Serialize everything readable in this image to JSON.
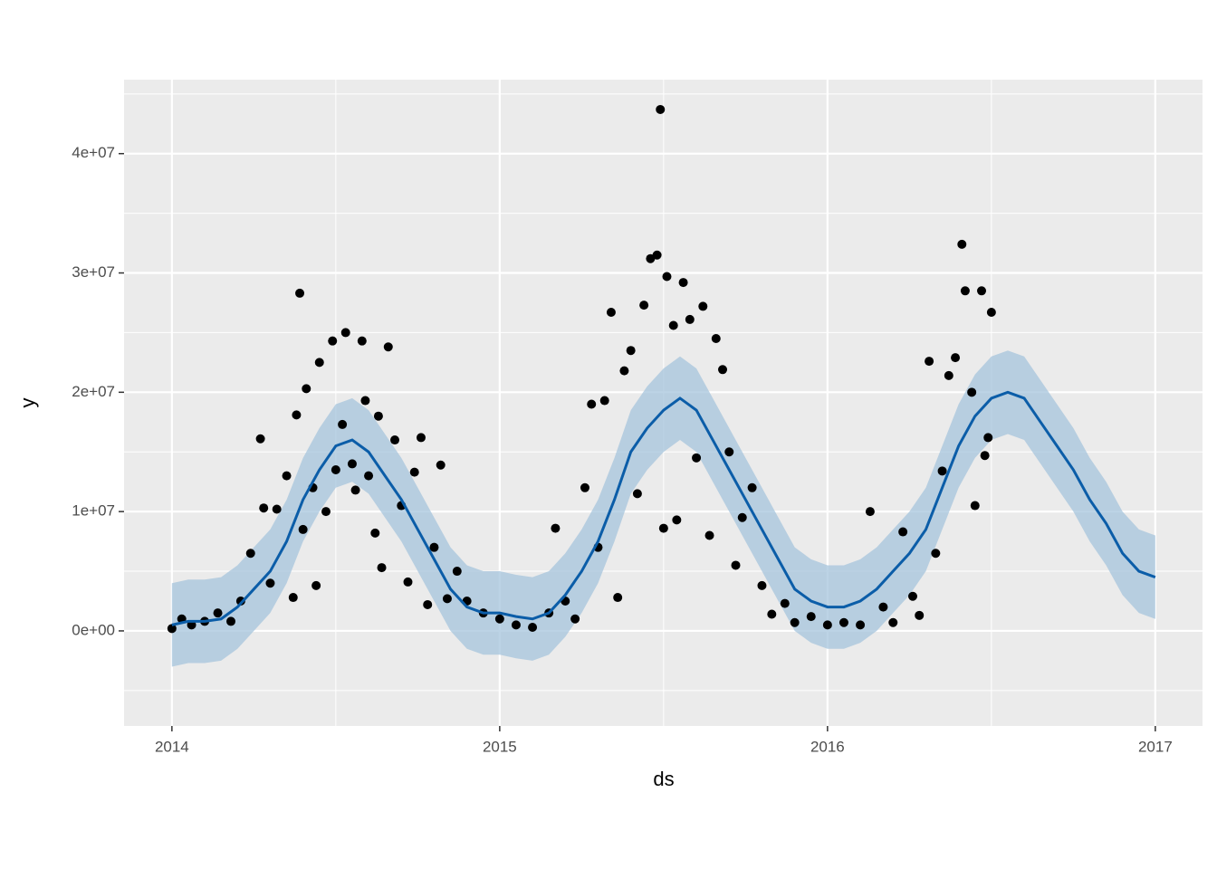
{
  "chart_data": {
    "type": "forecast",
    "xlabel": "ds",
    "ylabel": "y",
    "xlim": [
      2013.854,
      2017.144
    ],
    "xticks": [
      2014,
      2015,
      2016,
      2017
    ],
    "xminor_ticks": [
      2014.5,
      2015.5,
      2016.5
    ],
    "ylim": [
      -7970000,
      46200000
    ],
    "yticks": [
      {
        "value": 0,
        "label": "0e+00"
      },
      {
        "value": 10000000,
        "label": "1e+07"
      },
      {
        "value": 20000000,
        "label": "2e+07"
      },
      {
        "value": 30000000,
        "label": "3e+07"
      },
      {
        "value": 40000000,
        "label": "4e+07"
      }
    ],
    "yminor_ticks": [
      -5000000,
      5000000,
      15000000,
      25000000,
      35000000,
      45000000
    ],
    "grid": true,
    "color": "#0b5da8",
    "band_color": "#a6c4dc",
    "point_color": "#000000",
    "x": [
      2014,
      2014.05,
      2014.1,
      2014.15,
      2014.2,
      2014.25,
      2014.3,
      2014.35,
      2014.4,
      2014.45,
      2014.5,
      2014.55,
      2014.6,
      2014.65,
      2014.7,
      2014.75,
      2014.8,
      2014.85,
      2014.9,
      2014.95,
      2015,
      2015.05,
      2015.1,
      2015.15,
      2015.2,
      2015.25,
      2015.3,
      2015.35,
      2015.4,
      2015.45,
      2015.5,
      2015.55,
      2015.6,
      2015.65,
      2015.7,
      2015.75,
      2015.8,
      2015.85,
      2015.9,
      2015.95,
      2016,
      2016.05,
      2016.1,
      2016.15,
      2016.2,
      2016.25,
      2016.3,
      2016.35,
      2016.4,
      2016.45,
      2016.5,
      2016.55,
      2016.6,
      2016.65,
      2016.7,
      2016.75,
      2016.8,
      2016.85,
      2016.9,
      2016.95,
      2017
    ],
    "values": [
      500000,
      800000,
      800000,
      1000000,
      2000000,
      3500000,
      5000000,
      7500000,
      11000000,
      13500000,
      15500000,
      16000000,
      15000000,
      13000000,
      11000000,
      8500000,
      6000000,
      3500000,
      2000000,
      1500000,
      1500000,
      1200000,
      1000000,
      1500000,
      3000000,
      5000000,
      7500000,
      11000000,
      15000000,
      17000000,
      18500000,
      19500000,
      18500000,
      16000000,
      13500000,
      11000000,
      8500000,
      6000000,
      3500000,
      2500000,
      2000000,
      2000000,
      2500000,
      3500000,
      5000000,
      6500000,
      8500000,
      12000000,
      15500000,
      18000000,
      19500000,
      20000000,
      19500000,
      17500000,
      15500000,
      13500000,
      11000000,
      9000000,
      6500000,
      5000000,
      4500000
    ],
    "lower": [
      -3000000,
      -2700000,
      -2700000,
      -2500000,
      -1500000,
      0,
      1500000,
      4000000,
      7500000,
      10000000,
      12000000,
      12500000,
      11500000,
      9500000,
      7500000,
      5000000,
      2500000,
      0,
      -1500000,
      -2000000,
      -2000000,
      -2300000,
      -2500000,
      -2000000,
      -500000,
      1500000,
      4000000,
      7500000,
      11500000,
      13500000,
      15000000,
      16000000,
      15000000,
      12500000,
      10000000,
      7500000,
      5000000,
      2500000,
      0,
      -1000000,
      -1500000,
      -1500000,
      -1000000,
      0,
      1500000,
      3000000,
      5000000,
      8500000,
      12000000,
      14500000,
      16000000,
      16500000,
      16000000,
      14000000,
      12000000,
      10000000,
      7500000,
      5500000,
      3000000,
      1500000,
      1000000
    ],
    "upper": [
      4000000,
      4300000,
      4300000,
      4500000,
      5500000,
      7000000,
      8500000,
      11000000,
      14500000,
      17000000,
      19000000,
      19500000,
      18500000,
      16500000,
      14500000,
      12000000,
      9500000,
      7000000,
      5500000,
      5000000,
      5000000,
      4700000,
      4500000,
      5000000,
      6500000,
      8500000,
      11000000,
      14500000,
      18500000,
      20500000,
      22000000,
      23000000,
      22000000,
      19500000,
      17000000,
      14500000,
      12000000,
      9500000,
      7000000,
      6000000,
      5500000,
      5500000,
      6000000,
      7000000,
      8500000,
      10000000,
      12000000,
      15500000,
      19000000,
      21500000,
      23000000,
      23500000,
      23000000,
      21000000,
      19000000,
      17000000,
      14500000,
      12500000,
      10000000,
      8500000,
      8000000
    ],
    "points": {
      "x": [
        2014,
        2014.03,
        2014.06,
        2014.1,
        2014.14,
        2014.18,
        2014.21,
        2014.24,
        2014.27,
        2014.28,
        2014.3,
        2014.32,
        2014.35,
        2014.37,
        2014.38,
        2014.4,
        2014.39,
        2014.41,
        2014.43,
        2014.44,
        2014.45,
        2014.47,
        2014.49,
        2014.5,
        2014.52,
        2014.53,
        2014.55,
        2014.56,
        2014.58,
        2014.59,
        2014.6,
        2014.62,
        2014.63,
        2014.64,
        2014.66,
        2014.68,
        2014.7,
        2014.72,
        2014.74,
        2014.76,
        2014.78,
        2014.8,
        2014.82,
        2014.84,
        2014.87,
        2014.9,
        2014.95,
        2015,
        2015.05,
        2015.1,
        2015.15,
        2015.17,
        2015.2,
        2015.23,
        2015.26,
        2015.28,
        2015.3,
        2015.32,
        2015.34,
        2015.36,
        2015.38,
        2015.4,
        2015.42,
        2015.44,
        2015.46,
        2015.48,
        2015.49,
        2015.5,
        2015.51,
        2015.53,
        2015.54,
        2015.56,
        2015.58,
        2015.6,
        2015.62,
        2015.64,
        2015.66,
        2015.68,
        2015.7,
        2015.72,
        2015.74,
        2015.77,
        2015.8,
        2015.83,
        2015.87,
        2015.9,
        2015.95,
        2016,
        2016.05,
        2016.1,
        2016.13,
        2016.17,
        2016.2,
        2016.23,
        2016.26,
        2016.28,
        2016.31,
        2016.33,
        2016.35,
        2016.37,
        2016.39,
        2016.41,
        2016.42,
        2016.44,
        2016.45,
        2016.47,
        2016.48,
        2016.5,
        2016.49
      ],
      "values": [
        200000,
        1000000,
        500000,
        800000,
        1500000,
        800000,
        2500000,
        6500000,
        16100000,
        10300000,
        4000000,
        10200000,
        13000000,
        2800000,
        18100000,
        8500000,
        28300000,
        20300000,
        12000000,
        3800000,
        22500000,
        10000000,
        24300000,
        13500000,
        17300000,
        25000000,
        14000000,
        11800000,
        24300000,
        19300000,
        13000000,
        8200000,
        18000000,
        5300000,
        23800000,
        16000000,
        10500000,
        4100000,
        13300000,
        16200000,
        2200000,
        7000000,
        13900000,
        2700000,
        5000000,
        2500000,
        1500000,
        1000000,
        500000,
        300000,
        1500000,
        8600000,
        2500000,
        1000000,
        12000000,
        19000000,
        7000000,
        19300000,
        26700000,
        2800000,
        21800000,
        23500000,
        11500000,
        27300000,
        31200000,
        31500000,
        43700000,
        8600000,
        29700000,
        25600000,
        9300000,
        29200000,
        26100000,
        14500000,
        27200000,
        8000000,
        24500000,
        21900000,
        15000000,
        5500000,
        9500000,
        12000000,
        3800000,
        1400000,
        2300000,
        700000,
        1200000,
        500000,
        700000,
        500000,
        10000000,
        2000000,
        700000,
        8300000,
        2900000,
        1300000,
        22600000,
        6500000,
        13400000,
        21400000,
        22900000,
        32400000,
        28500000,
        20000000,
        10500000,
        28500000,
        14700000,
        26700000,
        16200000
      ]
    }
  }
}
